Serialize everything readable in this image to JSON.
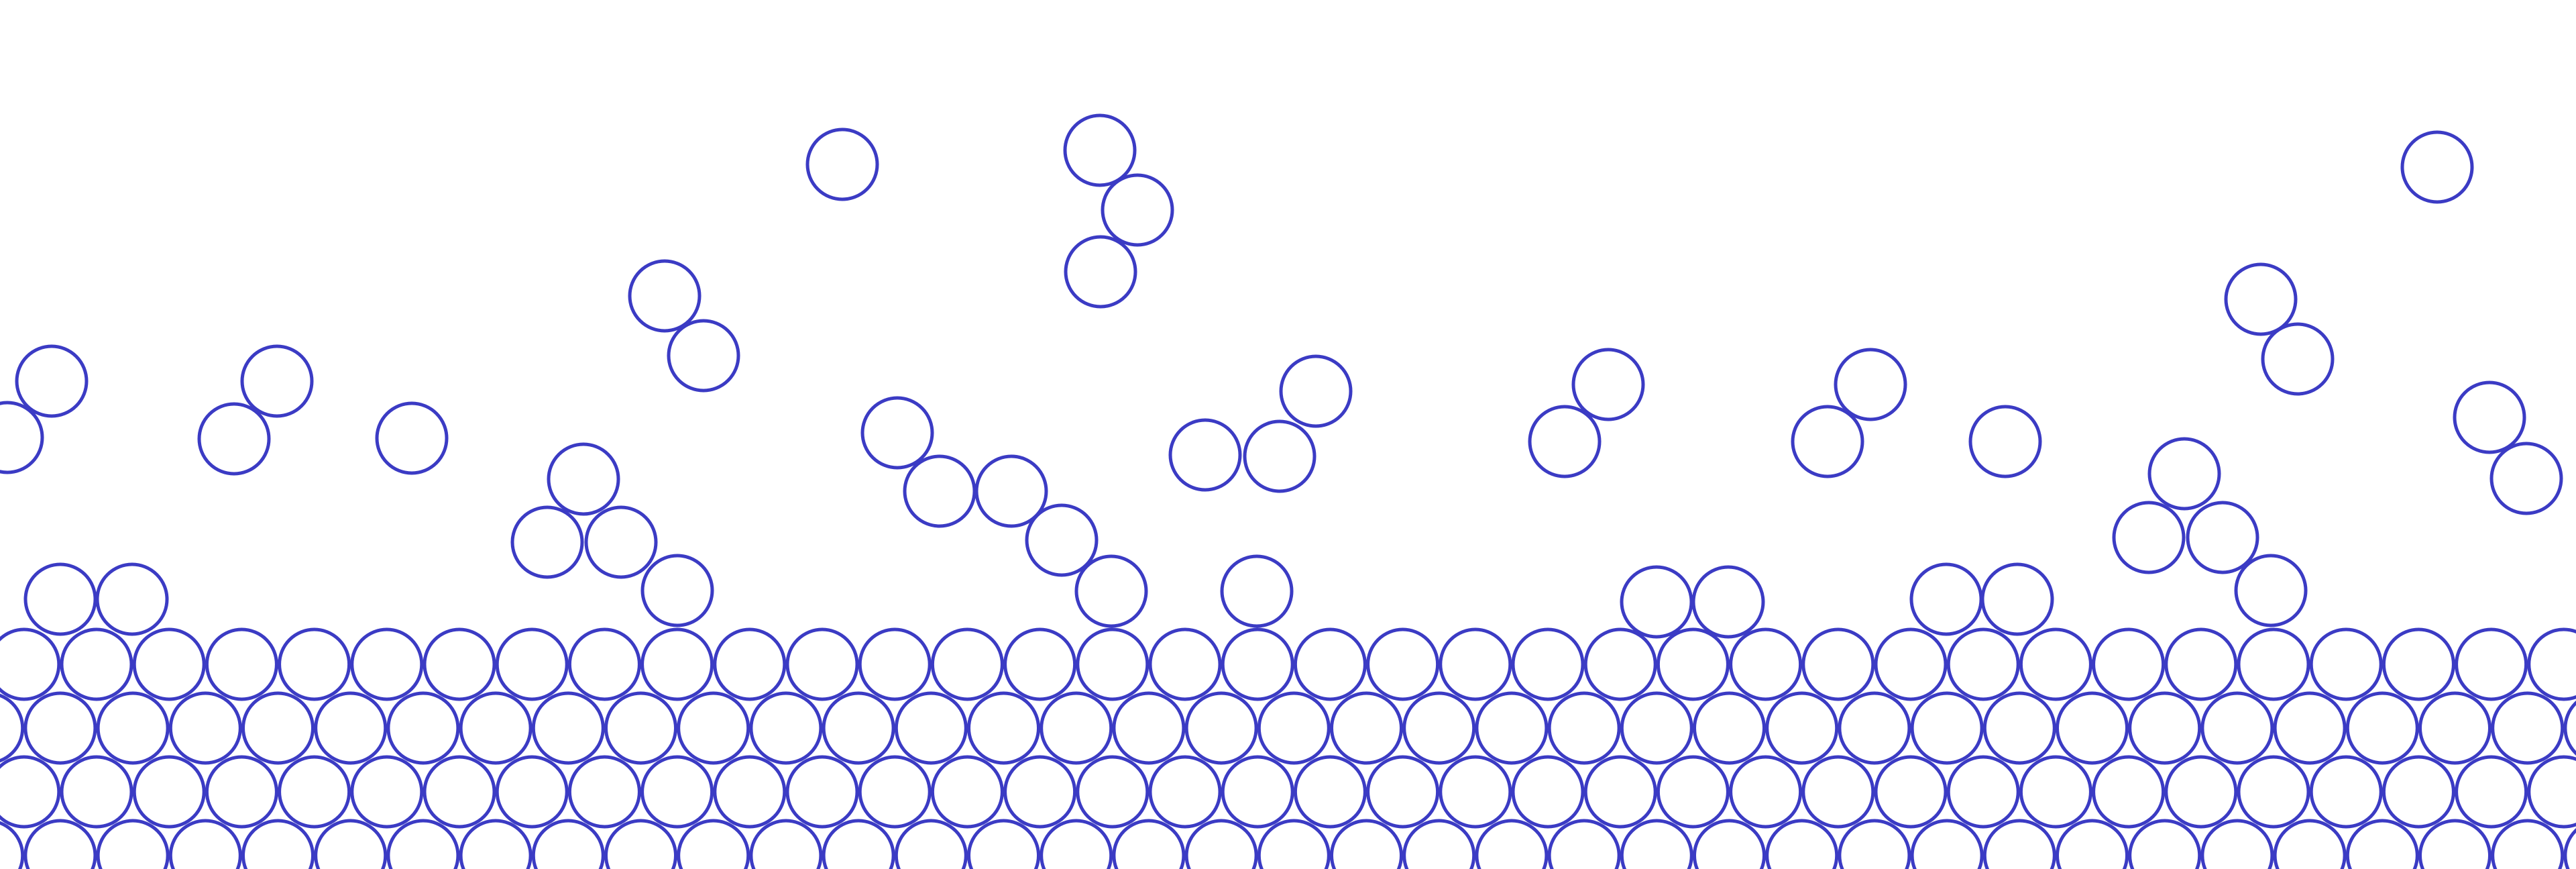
{
  "style": {
    "background": "#ffffff",
    "stroke": "#3b3bc4"
  }
}
